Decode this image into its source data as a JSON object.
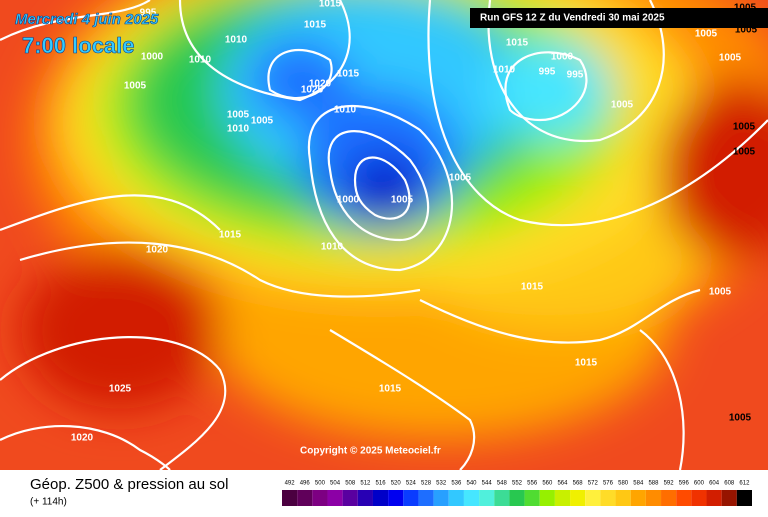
{
  "header": {
    "date": "Mercredi 4 juin 2025",
    "time": "7:00 locale",
    "run": "Run GFS 12 Z du Vendredi 30 mai 2025"
  },
  "isobar_labels": [
    "995",
    "1015",
    "1015",
    "1010",
    "1000",
    "1010",
    "1015",
    "1020",
    "1025",
    "1005",
    "1010",
    "1005",
    "1005",
    "1010",
    "1000",
    "1005",
    "1010",
    "1005",
    "1015",
    "1020",
    "1015",
    "1010",
    "1000",
    "995",
    "995",
    "1005",
    "1005",
    "1005",
    "1015",
    "1005",
    "1015",
    "1015",
    "1025",
    "1020",
    "1005",
    "1005",
    "1005",
    "1005",
    "1005"
  ],
  "copyright": "Copyright © 2025 Meteociel.fr",
  "footer": {
    "title": "Géop. Z500 & pression au sol",
    "lead": "(+ 114h)"
  },
  "scale": {
    "values": [
      492,
      496,
      500,
      504,
      508,
      512,
      516,
      520,
      524,
      528,
      532,
      536,
      540,
      544,
      548,
      552,
      556,
      560,
      564,
      568,
      572,
      576,
      580,
      584,
      588,
      592,
      596,
      600,
      604,
      608,
      612
    ],
    "colors": [
      "#4b0040",
      "#60005a",
      "#7d0082",
      "#8c00a6",
      "#5a00a0",
      "#2800b4",
      "#0000c8",
      "#0000f0",
      "#0a3cff",
      "#1e6eff",
      "#28a0ff",
      "#32c8ff",
      "#46e6ff",
      "#50f0dc",
      "#3cdc96",
      "#28c850",
      "#50dc32",
      "#96f000",
      "#c8f000",
      "#f0f000",
      "#fff03c",
      "#ffdc28",
      "#ffc814",
      "#ffa500",
      "#ff8c00",
      "#ff6e00",
      "#ff4b00",
      "#f03200",
      "#d21e00",
      "#961400",
      "#000000"
    ]
  }
}
